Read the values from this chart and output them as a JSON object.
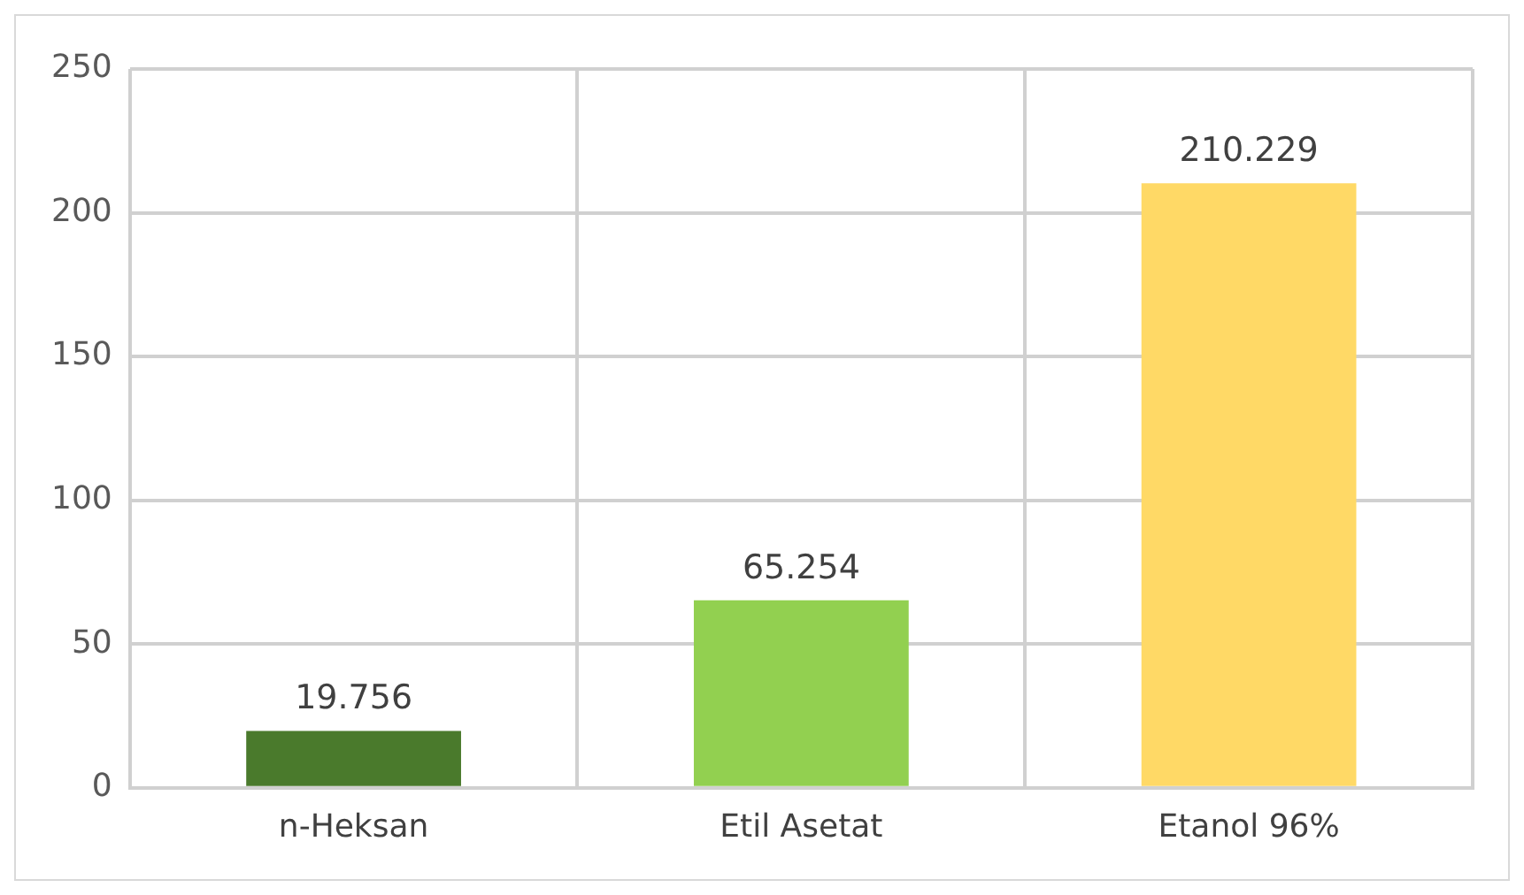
{
  "chart_data": {
    "type": "bar",
    "categories": [
      "n-Heksan",
      "Etil Asetat",
      "Etanol 96%"
    ],
    "values": [
      19.756,
      65.254,
      210.229
    ],
    "colors": [
      "#4a7a2c",
      "#92d050",
      "#ffd966"
    ],
    "ylim": [
      0,
      250
    ],
    "yticks": [
      0,
      50,
      100,
      150,
      200,
      250
    ],
    "grid": true,
    "legend": false,
    "data_labels": true
  }
}
